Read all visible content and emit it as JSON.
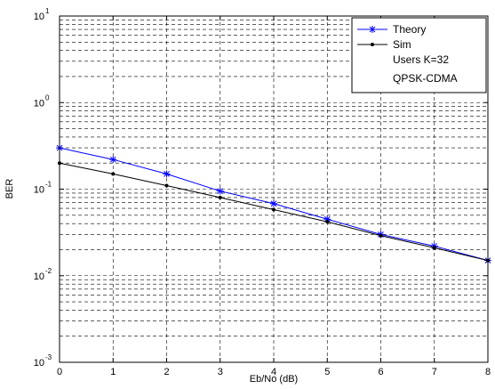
{
  "chart_data": {
    "type": "line",
    "title": "",
    "xlabel": "Eb/No (dB)",
    "ylabel": "BER",
    "xlim": [
      0,
      8
    ],
    "ylim": [
      0.001,
      10
    ],
    "yscale": "log",
    "grid": true,
    "legend_placement": "top-right",
    "x_ticks": [
      "0",
      "1",
      "2",
      "3",
      "4",
      "5",
      "6",
      "7",
      "8"
    ],
    "y_ticks": [
      {
        "base": "10",
        "exp": "-3"
      },
      {
        "base": "10",
        "exp": "-2"
      },
      {
        "base": "10",
        "exp": "-1"
      },
      {
        "base": "10",
        "exp": "0"
      },
      {
        "base": "10",
        "exp": "1"
      }
    ],
    "x": [
      0,
      1,
      2,
      3,
      4,
      5,
      6,
      7,
      8
    ],
    "series": [
      {
        "name": "Theory",
        "color": "#0000ff",
        "marker": "star",
        "values": [
          0.3,
          0.22,
          0.15,
          0.095,
          0.068,
          0.045,
          0.03,
          0.022,
          0.015
        ]
      },
      {
        "name": "Sim",
        "color": "#000000",
        "marker": "dot",
        "values": [
          0.2,
          0.15,
          0.11,
          0.08,
          0.058,
          0.042,
          0.029,
          0.021,
          0.015
        ]
      }
    ],
    "legend_notes": [
      "Users K=32",
      "QPSK-CDMA"
    ]
  }
}
